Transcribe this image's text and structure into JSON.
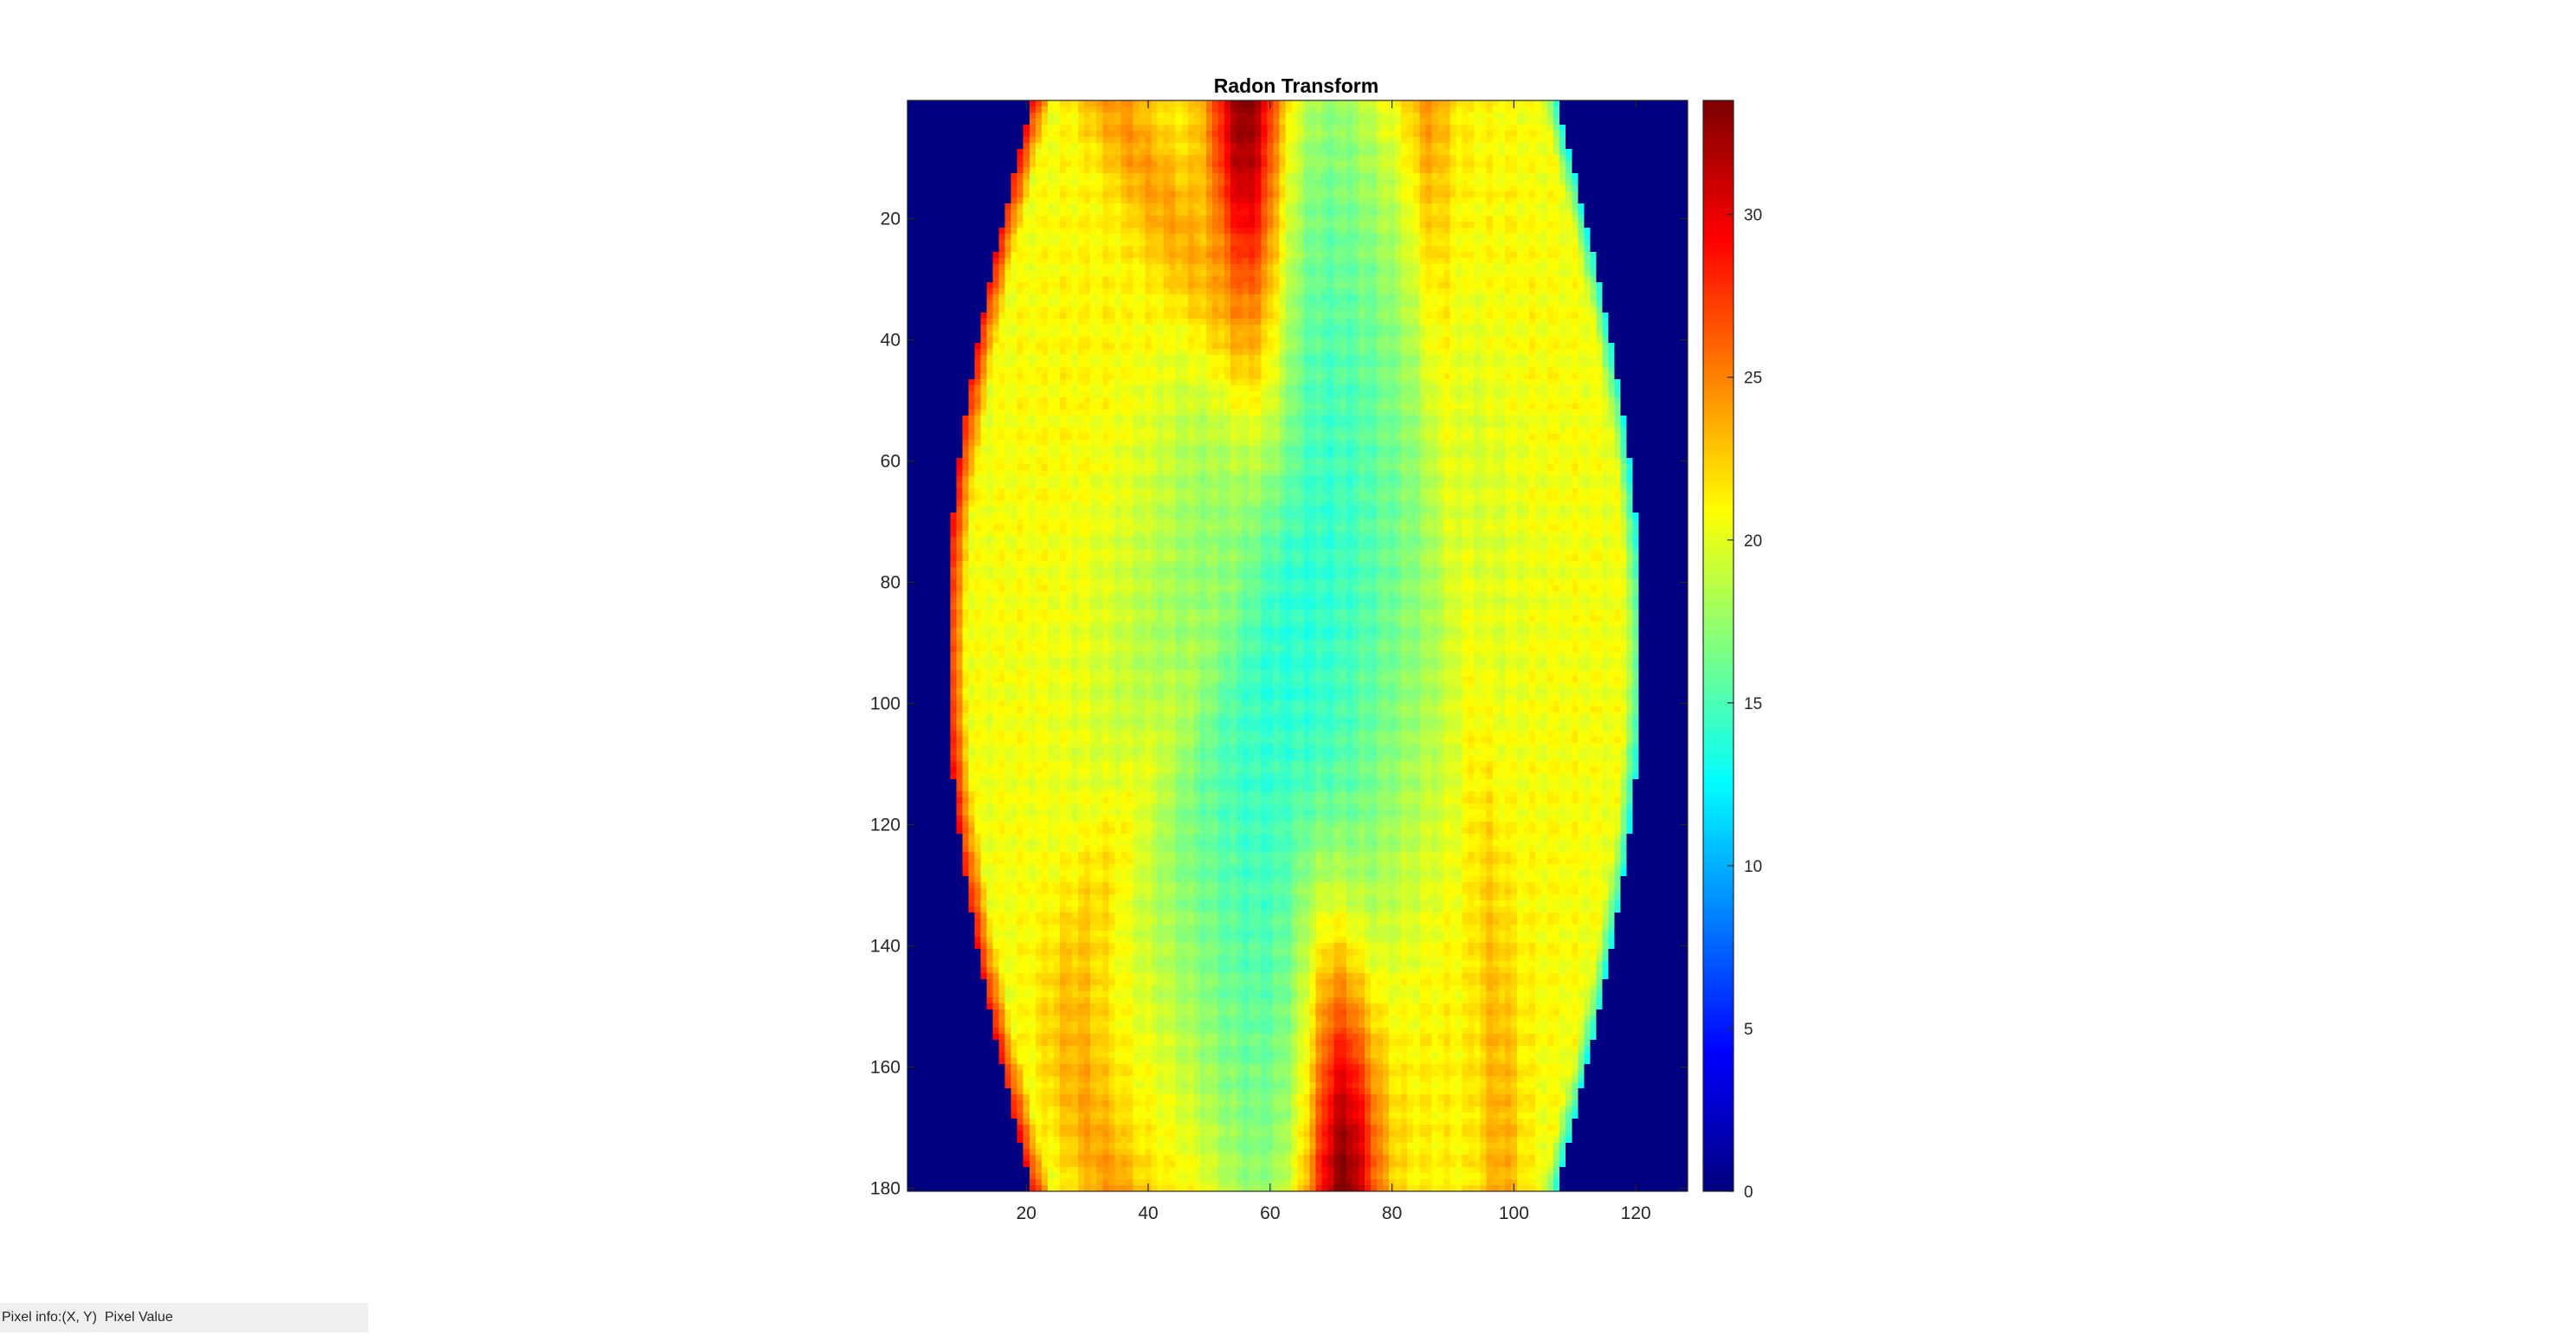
{
  "chart_data": {
    "type": "heatmap",
    "title": "Radon Transform",
    "xlabel": "",
    "ylabel": "",
    "xlim": [
      0.5,
      128.5
    ],
    "ylim": [
      0.5,
      180.5
    ],
    "y_direction": "reverse",
    "colormap": "jet",
    "clim": [
      0,
      33.5
    ],
    "x_ticks": [
      20,
      40,
      60,
      80,
      100,
      120
    ],
    "y_ticks": [
      20,
      40,
      60,
      80,
      100,
      120,
      140,
      160,
      180
    ],
    "colorbar": {
      "position": "right",
      "ticks": [
        0,
        5,
        10,
        15,
        20,
        25,
        30
      ]
    },
    "grid": false,
    "description_values": {
      "background_value": 0,
      "support_left_edge_x": {
        "at_y_1": 21,
        "at_y_90": 7,
        "at_y_180": 21
      },
      "support_right_edge_x": {
        "at_y_1": 107,
        "at_y_90": 121,
        "at_y_180": 107
      },
      "edge_peak_value": 29,
      "interior_typical_value": 20,
      "center_region_value": 13,
      "max_value": 33.5
    }
  },
  "status_bar": {
    "label": "Pixel info:",
    "text": "(X, Y)  Pixel Value"
  }
}
